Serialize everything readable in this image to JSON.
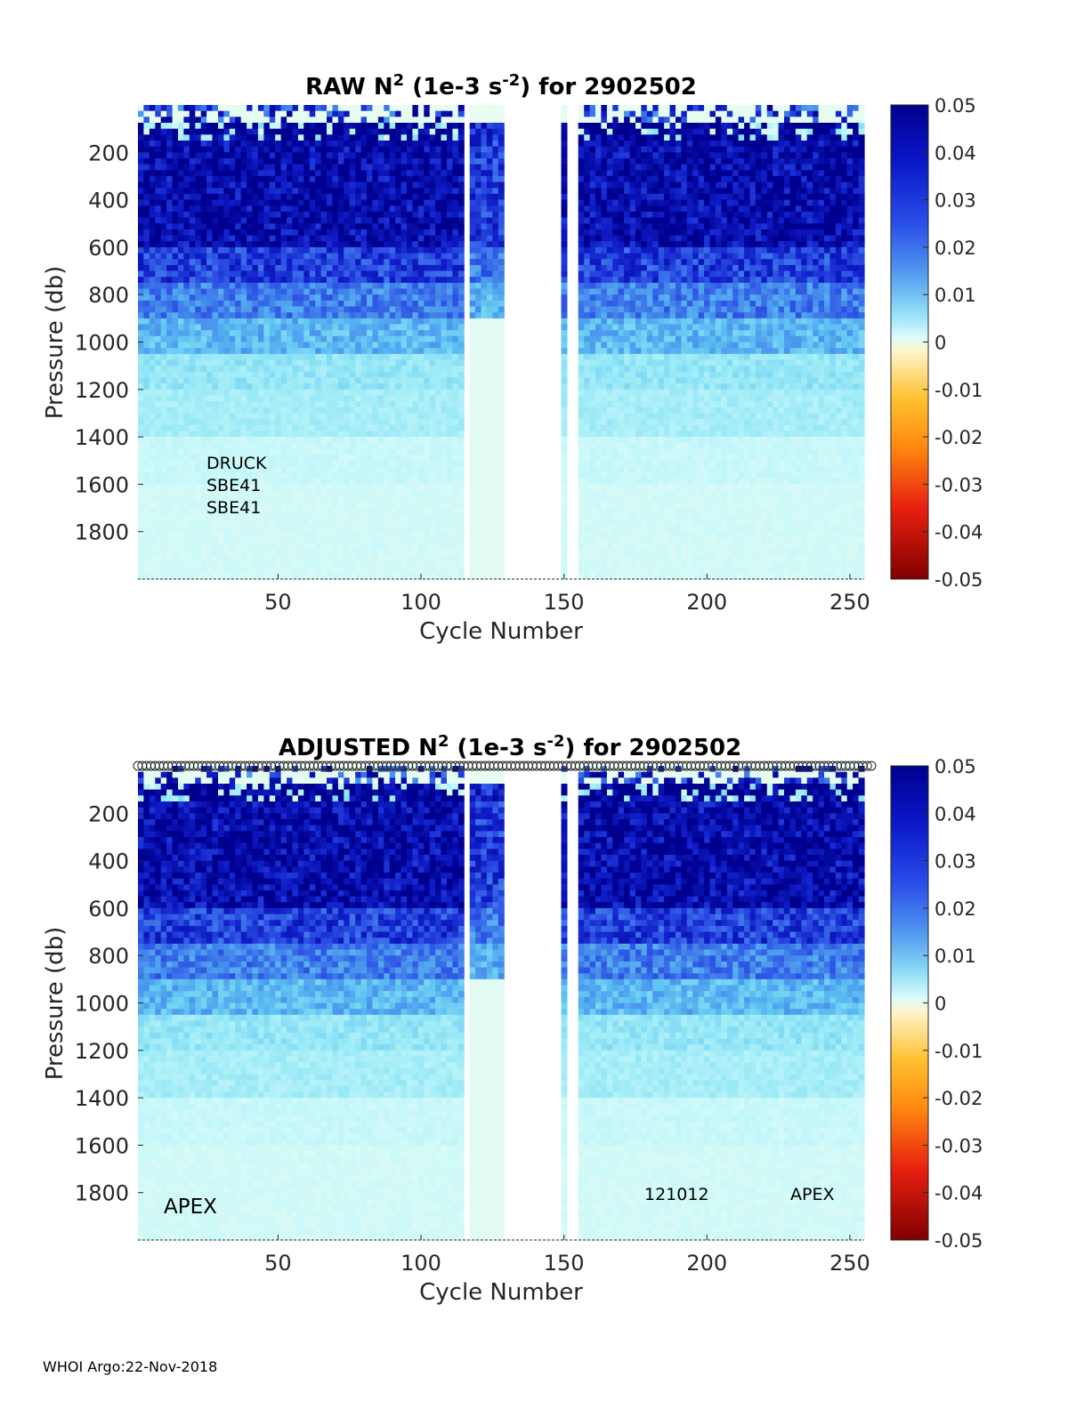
{
  "footer": "WHOI Argo:22-Nov-2018",
  "chart_data": [
    {
      "type": "heatmap",
      "title": "RAW N",
      "title_sup": "2",
      "title_mid": " (1e-3 s",
      "title_sup2": "-2",
      "title_end": ") for 2902502",
      "xlabel": "Cycle Number",
      "ylabel": "Pressure (db)",
      "xlim": [
        1,
        255
      ],
      "ylim": [
        2000,
        0
      ],
      "xticks": [
        50,
        100,
        150,
        200,
        250
      ],
      "yticks": [
        200,
        400,
        600,
        800,
        1000,
        1200,
        1400,
        1600,
        1800
      ],
      "colorbar": {
        "clim": [
          -0.05,
          0.05
        ],
        "ticks": [
          "0.05",
          "0.04",
          "0.03",
          "0.02",
          "0.01",
          "0",
          "-0.01",
          "-0.02",
          "-0.03",
          "-0.04",
          "-0.05"
        ]
      },
      "annotations": [
        "DRUCK",
        "SBE41",
        "SBE41"
      ],
      "gap_cycles": [
        [
          114,
          116
        ],
        [
          128,
          147
        ],
        [
          150,
          153
        ]
      ]
    },
    {
      "type": "heatmap",
      "title": "ADJUSTED N",
      "title_sup": "2",
      "title_mid": " (1e-3 s",
      "title_sup2": "-2",
      "title_end": ") for 2902502",
      "xlabel": "Cycle Number",
      "ylabel": "Pressure (db)",
      "xlim": [
        1,
        255
      ],
      "ylim": [
        2000,
        0
      ],
      "xticks": [
        50,
        100,
        150,
        200,
        250
      ],
      "yticks": [
        200,
        400,
        600,
        800,
        1000,
        1200,
        1400,
        1600,
        1800
      ],
      "colorbar": {
        "clim": [
          -0.05,
          0.05
        ],
        "ticks": [
          "0.05",
          "0.04",
          "0.03",
          "0.02",
          "0.01",
          "0",
          "-0.01",
          "-0.02",
          "-0.03",
          "-0.04",
          "-0.05"
        ]
      },
      "annotations_left": [
        "APEX"
      ],
      "annotations_right": [
        "121012",
        "APEX"
      ],
      "gap_cycles": [
        [
          114,
          116
        ],
        [
          128,
          147
        ],
        [
          150,
          153
        ]
      ]
    }
  ],
  "colors": {
    "dark_blue": "#00008f",
    "blue": "#2f4fe0",
    "light_blue": "#59b8f0",
    "cyan": "#b8f5fb",
    "pale": "#f0fde8",
    "zero": "#fffbe5",
    "orange": "#ff9a10",
    "red": "#e01510",
    "dark_red": "#800000"
  }
}
